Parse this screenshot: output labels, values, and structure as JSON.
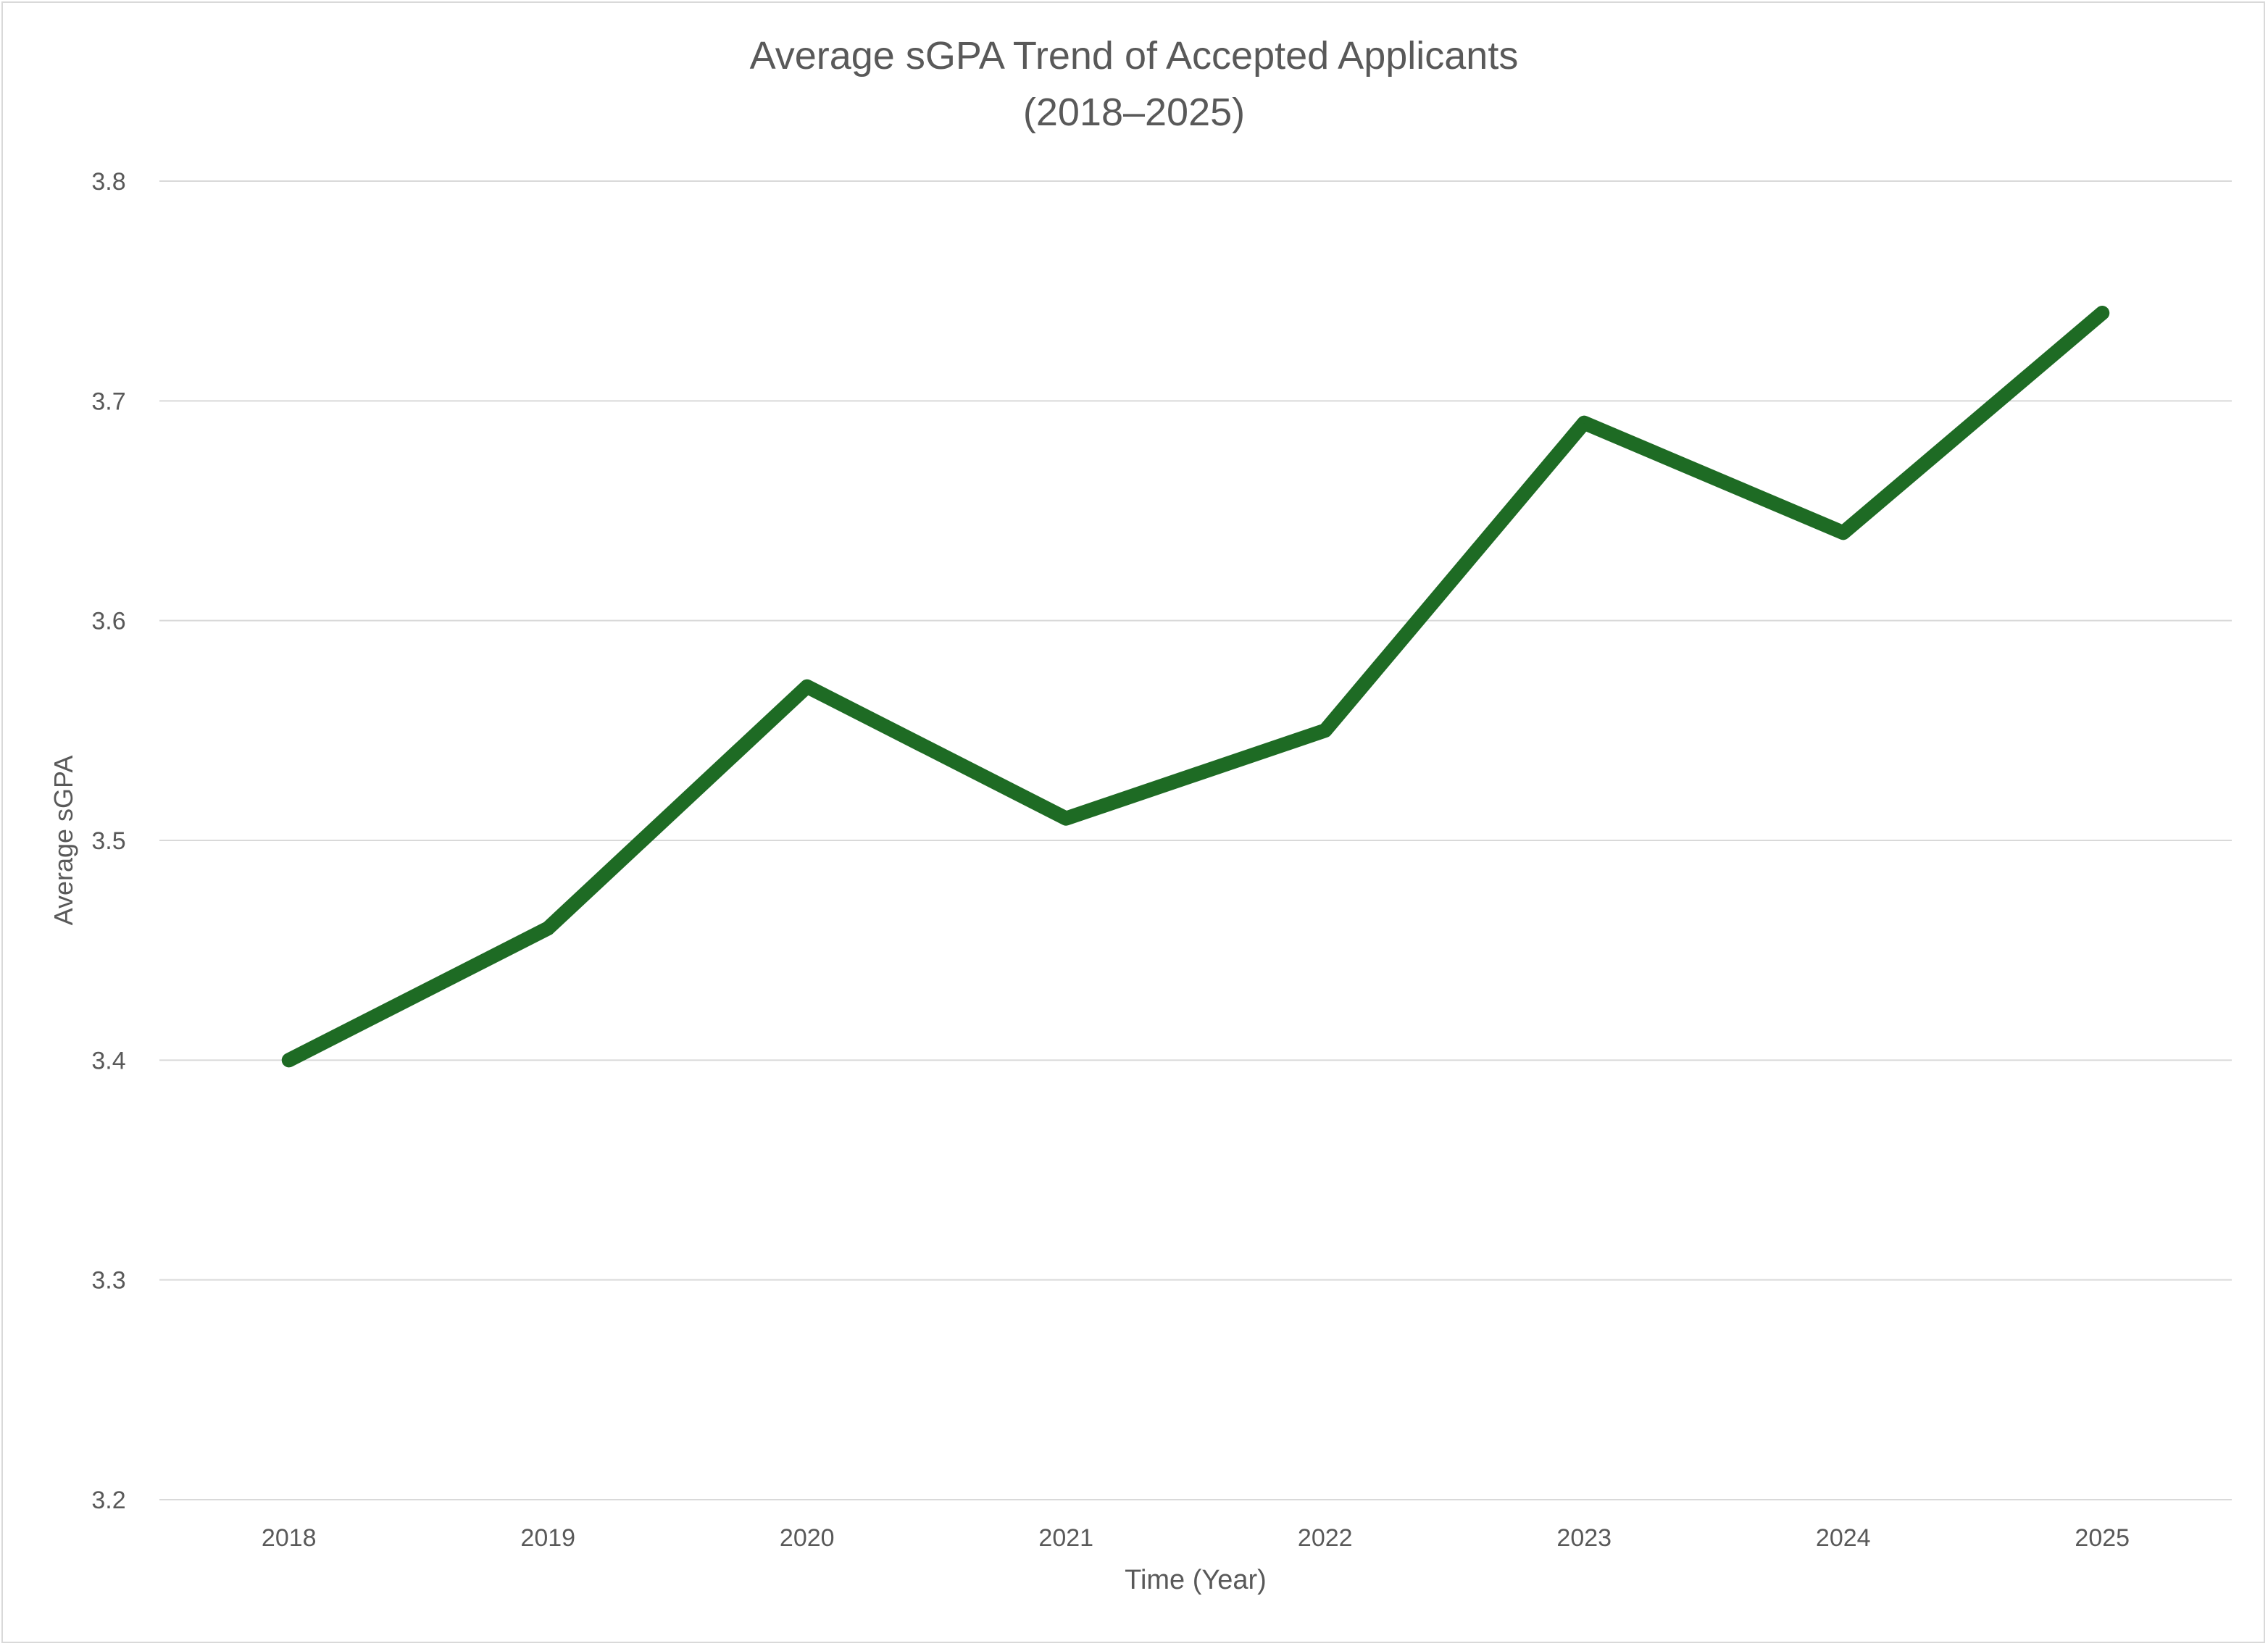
{
  "chart_data": {
    "type": "line",
    "title": "Average sGPA Trend of Accepted Applicants",
    "subtitle": "(2018–2025)",
    "xlabel": "Time (Year)",
    "ylabel": "Average sGPA",
    "categories": [
      "2018",
      "2019",
      "2020",
      "2021",
      "2022",
      "2023",
      "2024",
      "2025"
    ],
    "values": [
      3.4,
      3.46,
      3.57,
      3.51,
      3.55,
      3.69,
      3.64,
      3.74
    ],
    "ylim": [
      3.2,
      3.8
    ],
    "yticks": [
      "3.2",
      "3.3",
      "3.4",
      "3.5",
      "3.6",
      "3.7",
      "3.8"
    ],
    "grid": true,
    "legend": "none",
    "line_color": "#1e6b24",
    "grid_color": "#d9d9d9"
  }
}
